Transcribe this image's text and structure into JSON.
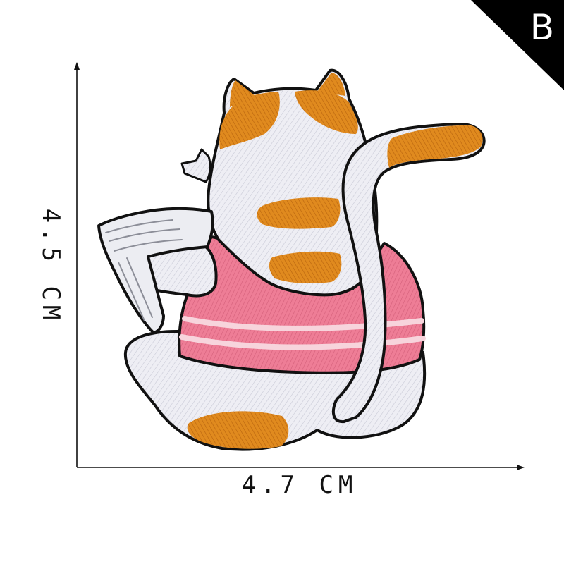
{
  "corner_label": "B",
  "dimensions": {
    "width_label": "4.7 CM",
    "height_label": "4.5 CM"
  },
  "colors": {
    "background": "#ffffff",
    "corner_flag": "#000000",
    "fur": "#eeeef4",
    "orange": "#e08a1e",
    "sweater": "#ee7d96",
    "stripe": "#f7d4dc",
    "outline": "#111111",
    "book": "#ecedf2"
  }
}
